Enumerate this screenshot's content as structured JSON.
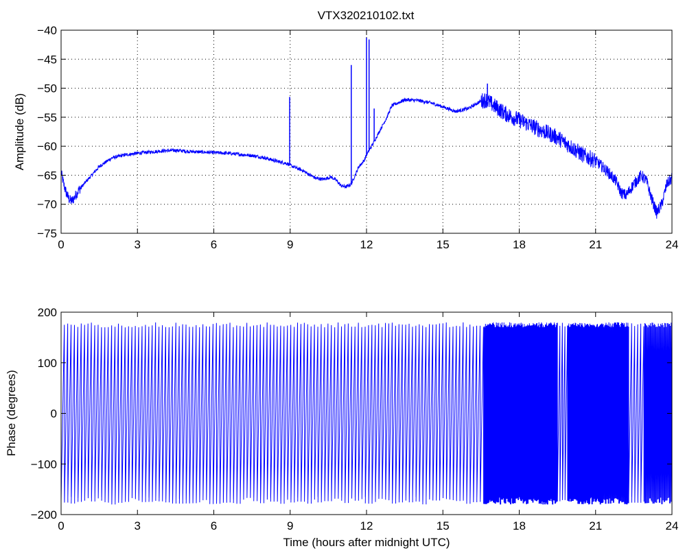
{
  "figure": {
    "title": "VTX320210102.txt"
  },
  "chart_data": [
    {
      "type": "line",
      "title": "VTX320210102.txt",
      "xlabel": "",
      "ylabel": "Amplitude (dB)",
      "xlim": [
        0,
        24
      ],
      "ylim": [
        -75,
        -40
      ],
      "xticks": [
        0,
        3,
        6,
        9,
        12,
        15,
        18,
        21,
        24
      ],
      "xtick_labels": [
        "0",
        "3",
        "6",
        "9",
        "12",
        "15",
        "18",
        "21",
        "24"
      ],
      "yticks": [
        -75,
        -70,
        -65,
        -60,
        -55,
        -50,
        -45,
        -40
      ],
      "ytick_labels": [
        "−75",
        "−70",
        "−65",
        "−60",
        "−55",
        "−50",
        "−45",
        "−40"
      ],
      "grid": true,
      "line_color": "#0000ff",
      "x": [
        0,
        0.1,
        0.2,
        0.3,
        0.4,
        0.5,
        0.7,
        1.0,
        1.5,
        2.0,
        2.5,
        3.0,
        3.5,
        4.0,
        4.5,
        5.0,
        5.5,
        6.0,
        6.5,
        7.0,
        7.5,
        8.0,
        8.5,
        8.9,
        9.0,
        9.5,
        9.8,
        10.0,
        10.3,
        10.6,
        10.8,
        11.0,
        11.2,
        11.4,
        11.5,
        11.7,
        11.9,
        12.0,
        12.2,
        12.5,
        12.8,
        13.0,
        13.5,
        14.0,
        14.5,
        15.0,
        15.5,
        16.0,
        16.5,
        16.7,
        17.0,
        17.5,
        18.0,
        18.5,
        19.0,
        19.5,
        20.0,
        20.5,
        21.0,
        21.5,
        21.8,
        22.0,
        22.2,
        22.5,
        22.8,
        23.0,
        23.2,
        23.4,
        23.6,
        23.8,
        24.0
      ],
      "y": [
        -64.5,
        -66.5,
        -68.0,
        -69.0,
        -69.5,
        -69.0,
        -67.5,
        -66.0,
        -63.5,
        -62.0,
        -61.5,
        -61.2,
        -61.0,
        -60.8,
        -60.7,
        -60.9,
        -61.0,
        -61.1,
        -61.2,
        -61.4,
        -61.6,
        -62.0,
        -62.6,
        -63.0,
        -63.3,
        -64.2,
        -65.0,
        -65.5,
        -65.7,
        -65.3,
        -65.8,
        -66.8,
        -67.0,
        -66.5,
        -65.5,
        -63.5,
        -62.5,
        -61.5,
        -60.0,
        -57.5,
        -55.0,
        -53.0,
        -52.0,
        -52.1,
        -52.5,
        -53.2,
        -54.0,
        -53.5,
        -52.2,
        -52.0,
        -53.0,
        -54.5,
        -55.5,
        -56.5,
        -57.5,
        -58.5,
        -60.0,
        -61.5,
        -62.5,
        -64.5,
        -66.0,
        -68.0,
        -68.5,
        -66.5,
        -65.0,
        -66.0,
        -69.0,
        -71.5,
        -70.0,
        -66.5,
        -65.5
      ],
      "spikes": [
        {
          "x": 8.98,
          "y": -51.5
        },
        {
          "x": 11.4,
          "y": -46.0
        },
        {
          "x": 12.0,
          "y": -41.3
        },
        {
          "x": 12.1,
          "y": -41.6
        },
        {
          "x": 12.3,
          "y": -53.5
        },
        {
          "x": 16.75,
          "y": -49.2
        }
      ]
    },
    {
      "type": "line",
      "title": "",
      "xlabel": "Time (hours after midnight UTC)",
      "ylabel": "Phase (degrees)",
      "xlim": [
        0,
        24
      ],
      "ylim": [
        -200,
        200
      ],
      "xticks": [
        0,
        3,
        6,
        9,
        12,
        15,
        18,
        21,
        24
      ],
      "xtick_labels": [
        "0",
        "3",
        "6",
        "9",
        "12",
        "15",
        "18",
        "21",
        "24"
      ],
      "yticks": [
        -200,
        -100,
        0,
        100,
        200
      ],
      "ytick_labels": [
        "−200",
        "−100",
        "0",
        "100",
        "200"
      ],
      "grid": false,
      "line_color": "#0000ff",
      "phase_range": [
        -180,
        180
      ],
      "sawtooth_cycles_per_hour": [
        {
          "from": 0.0,
          "to": 16.6,
          "cycles_per_hour": 7.5
        },
        {
          "from": 16.6,
          "to": 19.5,
          "cycles_per_hour": 40
        },
        {
          "from": 19.5,
          "to": 19.9,
          "cycles_per_hour": 9
        },
        {
          "from": 19.9,
          "to": 21.3,
          "cycles_per_hour": 40
        },
        {
          "from": 21.3,
          "to": 22.3,
          "cycles_per_hour": 36
        },
        {
          "from": 22.3,
          "to": 22.9,
          "cycles_per_hour": 8
        },
        {
          "from": 22.9,
          "to": 24.0,
          "cycles_per_hour": 32
        }
      ]
    }
  ]
}
